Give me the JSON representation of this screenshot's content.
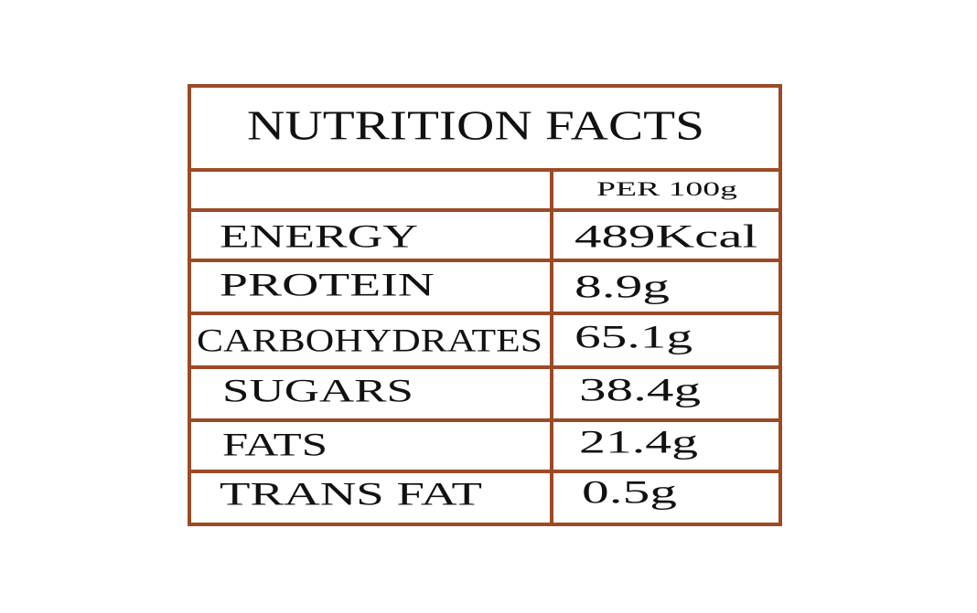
{
  "title": "NUTRITION FACTS",
  "table": {
    "column_header": "PER 100g",
    "rows": [
      [
        "ENERGY",
        "489Kcal"
      ],
      [
        "PROTEIN",
        "8.9g"
      ],
      [
        "CARBOHYDRATES",
        "65.1g"
      ],
      [
        "SUGARS",
        "38.4g"
      ],
      [
        "FATS",
        "21.4g"
      ],
      [
        "TRANS FAT",
        "0.5g"
      ]
    ]
  }
}
